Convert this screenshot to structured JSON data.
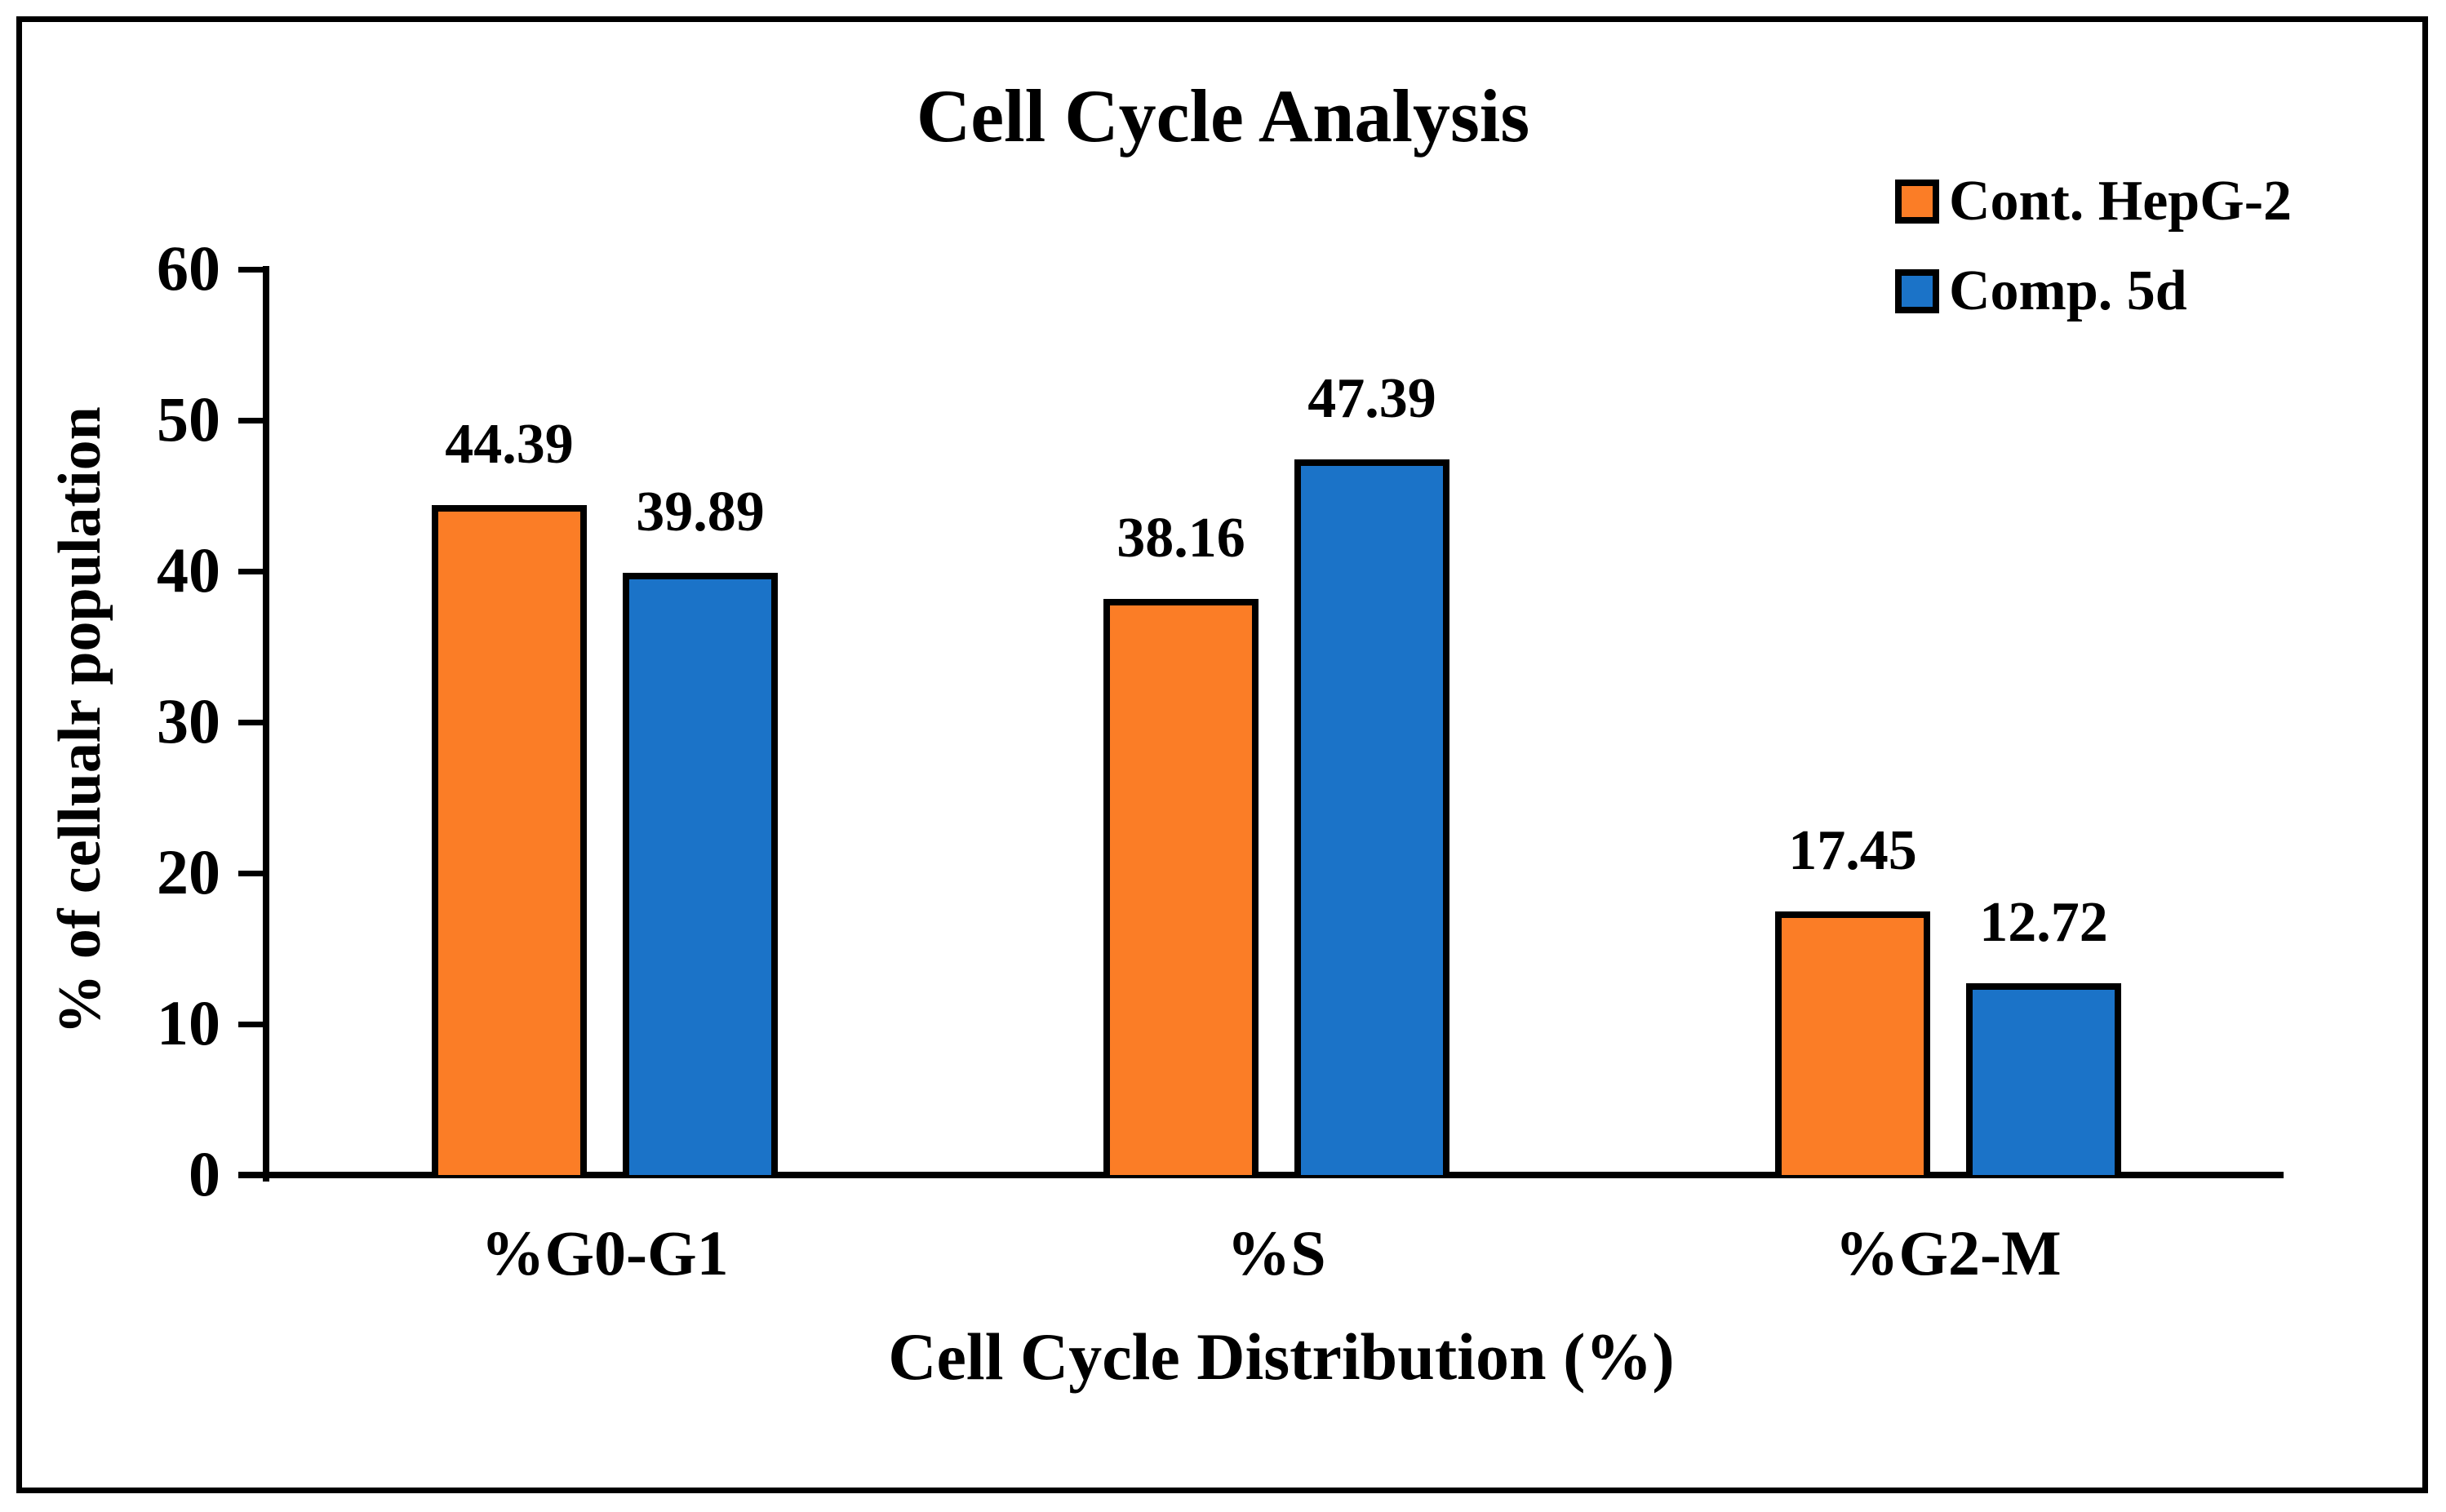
{
  "figure": {
    "background": "#ffffff",
    "border_color": "#000000"
  },
  "chart_data": {
    "type": "bar",
    "title": "Cell Cycle Analysis",
    "xlabel": "Cell Cycle Distribution (%)",
    "ylabel": "% of cellualr population",
    "categories": [
      "%G0-G1",
      "%S",
      "%G2-M"
    ],
    "series": [
      {
        "name": "Cont. HepG-2",
        "color": "#FB7D26",
        "values": [
          44.39,
          38.16,
          17.45
        ]
      },
      {
        "name": "Comp. 5d",
        "color": "#1B73C8",
        "values": [
          39.89,
          47.39,
          12.72
        ]
      }
    ],
    "value_labels": [
      "44.39",
      "39.89",
      "38.16",
      "47.39",
      "17.45",
      "12.72"
    ],
    "ylim": [
      0,
      60
    ],
    "yticks": [
      0,
      10,
      20,
      30,
      40,
      50,
      60
    ],
    "grid": false,
    "legend_position": "top-right",
    "bar_edge_color": "#000000",
    "axis_color": "#000000"
  }
}
